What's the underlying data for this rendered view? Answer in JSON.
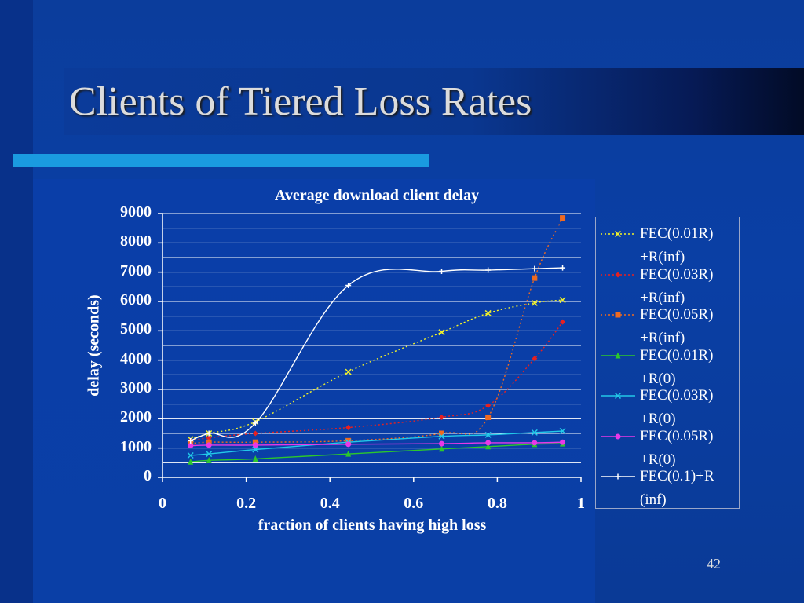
{
  "slide": {
    "title": "Clients of Tiered Loss Rates",
    "page_number": "42"
  },
  "chart_data": {
    "type": "line",
    "title": "Average download client delay",
    "xlabel": "fraction of clients having high loss",
    "ylabel": "delay (seconds)",
    "xlim": [
      0,
      1
    ],
    "ylim": [
      0,
      9000
    ],
    "x_ticks": [
      "0",
      "0.2",
      "0.4",
      "0.6",
      "0.8",
      "1"
    ],
    "y_ticks": [
      "0",
      "1000",
      "2000",
      "3000",
      "4000",
      "5000",
      "6000",
      "7000",
      "8000",
      "9000"
    ],
    "grid": true,
    "legend_position": "right",
    "x": [
      0.067,
      0.111,
      0.222,
      0.444,
      0.667,
      0.778,
      0.889,
      0.956
    ],
    "series": [
      {
        "name": "FEC(0.01R)+R(inf)",
        "color": "#f2f22a",
        "dash": "dotted",
        "marker": "x",
        "values": [
          1300,
          1500,
          1900,
          3600,
          4950,
          5600,
          5950,
          6050
        ]
      },
      {
        "name": "FEC(0.03R)+R(inf)",
        "color": "#e82020",
        "dash": "dotted",
        "marker": "diamond",
        "values": [
          1250,
          1350,
          1500,
          1700,
          2050,
          2450,
          4050,
          5300
        ]
      },
      {
        "name": "FEC(0.05R)+R(inf)",
        "color": "#f06a20",
        "dash": "dotted",
        "marker": "square",
        "values": [
          1150,
          1200,
          1200,
          1250,
          1500,
          2050,
          6800,
          8850
        ]
      },
      {
        "name": "FEC(0.01R)+R(0)",
        "color": "#2cc82c",
        "dash": "solid",
        "marker": "triangle",
        "values": [
          530,
          580,
          630,
          800,
          970,
          1050,
          1130,
          1150
        ]
      },
      {
        "name": "FEC(0.03R)+R(0)",
        "color": "#22c8e8",
        "dash": "solid",
        "marker": "x",
        "values": [
          750,
          800,
          950,
          1200,
          1400,
          1450,
          1530,
          1580
        ]
      },
      {
        "name": "FEC(0.05R)+R(0)",
        "color": "#e838e8",
        "dash": "solid",
        "marker": "circle",
        "values": [
          1080,
          1100,
          1100,
          1130,
          1150,
          1180,
          1180,
          1200
        ]
      },
      {
        "name": "FEC(0.1)+R(inf)",
        "color": "#ffffff",
        "dash": "solid",
        "marker": "plus",
        "values": [
          1250,
          1500,
          1850,
          6550,
          7030,
          7070,
          7120,
          7150
        ]
      }
    ],
    "legend_labels": [
      [
        "FEC(0.01R)",
        "+R(inf)"
      ],
      [
        "FEC(0.03R)",
        "+R(inf)"
      ],
      [
        "FEC(0.05R)",
        "+R(inf)"
      ],
      [
        "FEC(0.01R)",
        "+R(0)"
      ],
      [
        "FEC(0.03R)",
        "+R(0)"
      ],
      [
        "FEC(0.05R)",
        "+R(0)"
      ],
      [
        "FEC(0.1)+R",
        "(inf)"
      ]
    ]
  }
}
